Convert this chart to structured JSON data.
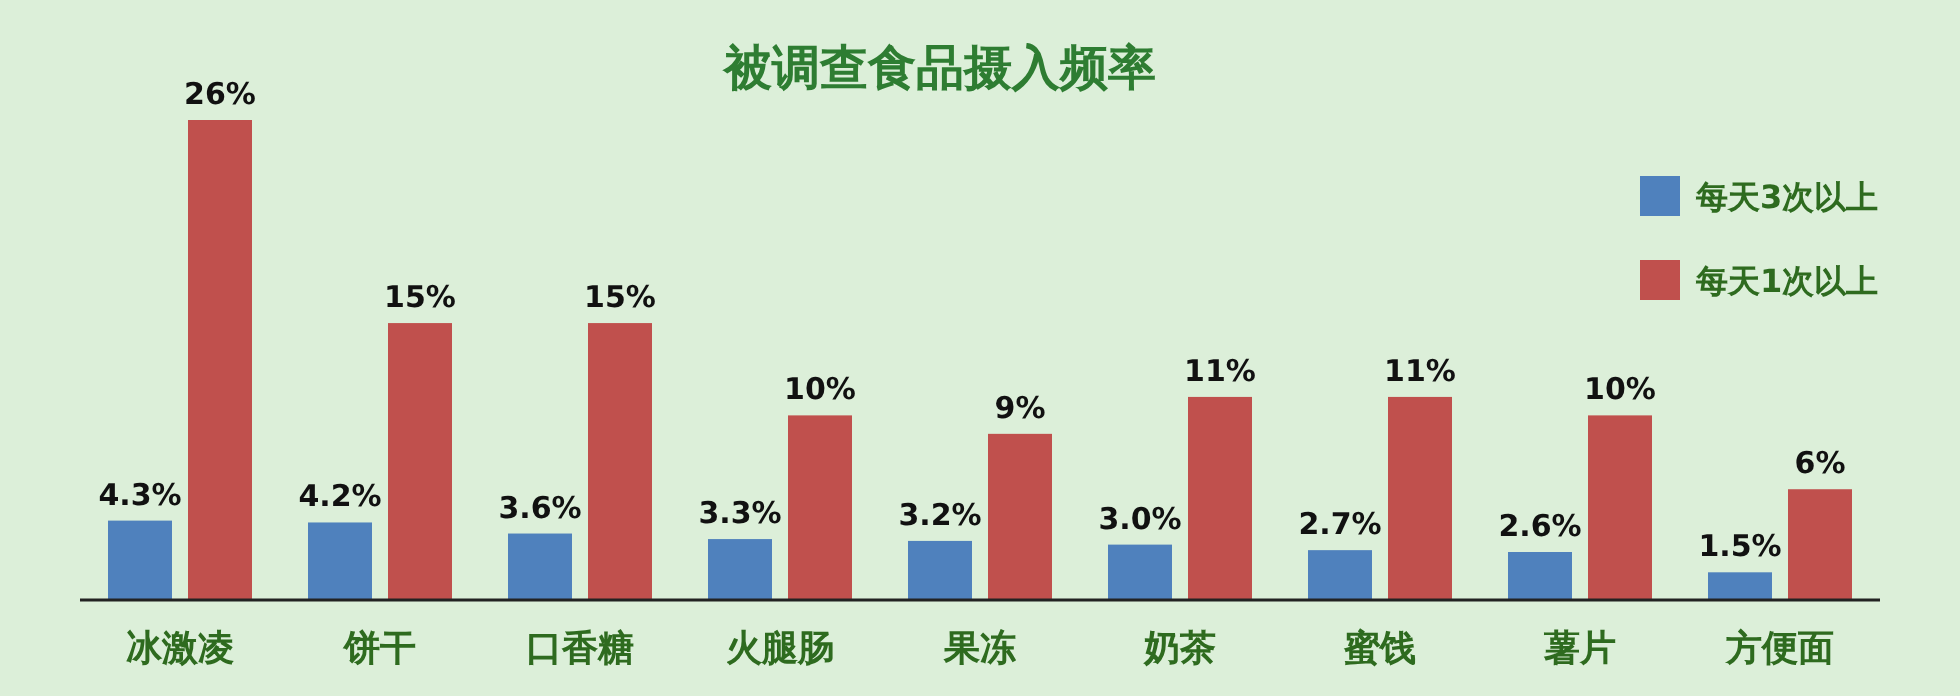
{
  "chart_data": {
    "type": "bar",
    "title": "被调查食品摄入频率",
    "categories": [
      "冰激凌",
      "饼干",
      "口香糖",
      "火腿肠",
      "果冻",
      "奶茶",
      "蜜饯",
      "薯片",
      "方便面"
    ],
    "series": [
      {
        "name": "每天3次以上",
        "color": "#4f81bd",
        "values": [
          4.3,
          4.2,
          3.6,
          3.3,
          3.2,
          3.0,
          2.7,
          2.6,
          1.5
        ],
        "value_labels": [
          "4.3%",
          "4.2%",
          "3.6%",
          "3.3%",
          "3.2%",
          "3.0%",
          "2.7%",
          "2.6%",
          "1.5%"
        ]
      },
      {
        "name": "每天1次以上",
        "color": "#c0504d",
        "values": [
          26,
          15,
          15,
          10,
          9,
          11,
          11,
          10,
          6
        ],
        "value_labels": [
          "26%",
          "15%",
          "15%",
          "10%",
          "9%",
          "11%",
          "11%",
          "10%",
          "6%"
        ]
      }
    ],
    "legend": "top right"
  }
}
